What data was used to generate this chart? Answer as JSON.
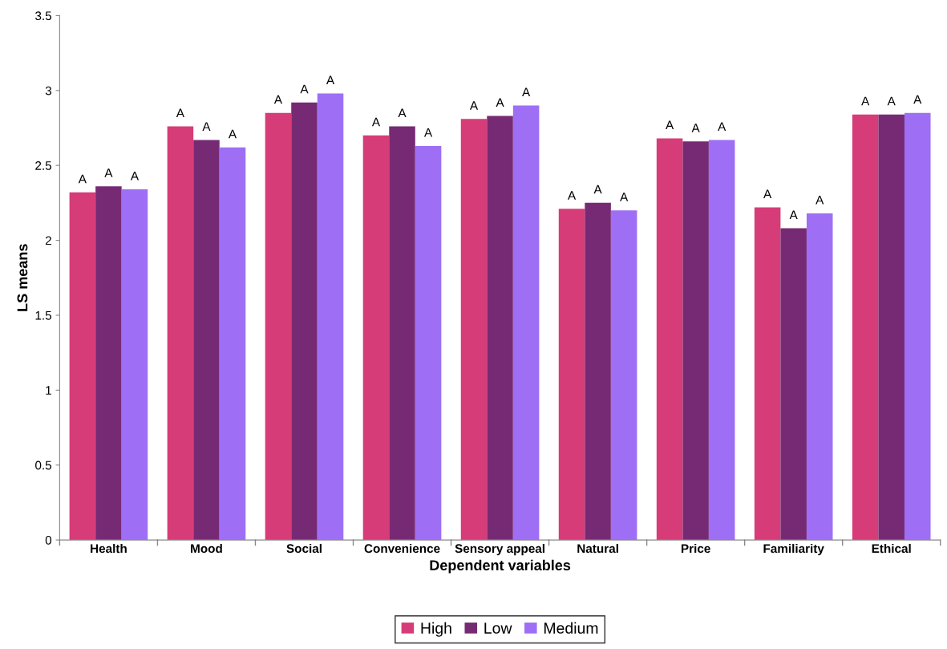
{
  "chart_data": {
    "type": "bar",
    "xlabel": "Dependent variables",
    "ylabel": "LS means",
    "categories": [
      "Health",
      "Mood",
      "Social",
      "Convenience",
      "Sensory appeal",
      "Natural",
      "Price",
      "Familiarity",
      "Ethical"
    ],
    "series": [
      {
        "name": "High",
        "color": "#d63c78",
        "values": [
          2.32,
          2.76,
          2.85,
          2.7,
          2.81,
          2.21,
          2.68,
          2.22,
          2.84
        ],
        "value_labels": [
          "A",
          "A",
          "A",
          "A",
          "A",
          "A",
          "A",
          "A",
          "A"
        ]
      },
      {
        "name": "Low",
        "color": "#772a74",
        "values": [
          2.36,
          2.67,
          2.92,
          2.76,
          2.83,
          2.25,
          2.66,
          2.08,
          2.84
        ],
        "value_labels": [
          "A",
          "A",
          "A",
          "A",
          "A",
          "A",
          "A",
          "A",
          "A"
        ]
      },
      {
        "name": "Medium",
        "color": "#9e6ff5",
        "values": [
          2.34,
          2.62,
          2.98,
          2.63,
          2.9,
          2.2,
          2.67,
          2.18,
          2.85
        ],
        "value_labels": [
          "A",
          "A",
          "A",
          "A",
          "A",
          "A",
          "A",
          "A",
          "A"
        ]
      }
    ],
    "ylim": [
      0,
      3.5
    ],
    "yticks": [
      0,
      0.5,
      1,
      1.5,
      2,
      2.5,
      3,
      3.5
    ],
    "grid": false,
    "legend": "bottom"
  }
}
